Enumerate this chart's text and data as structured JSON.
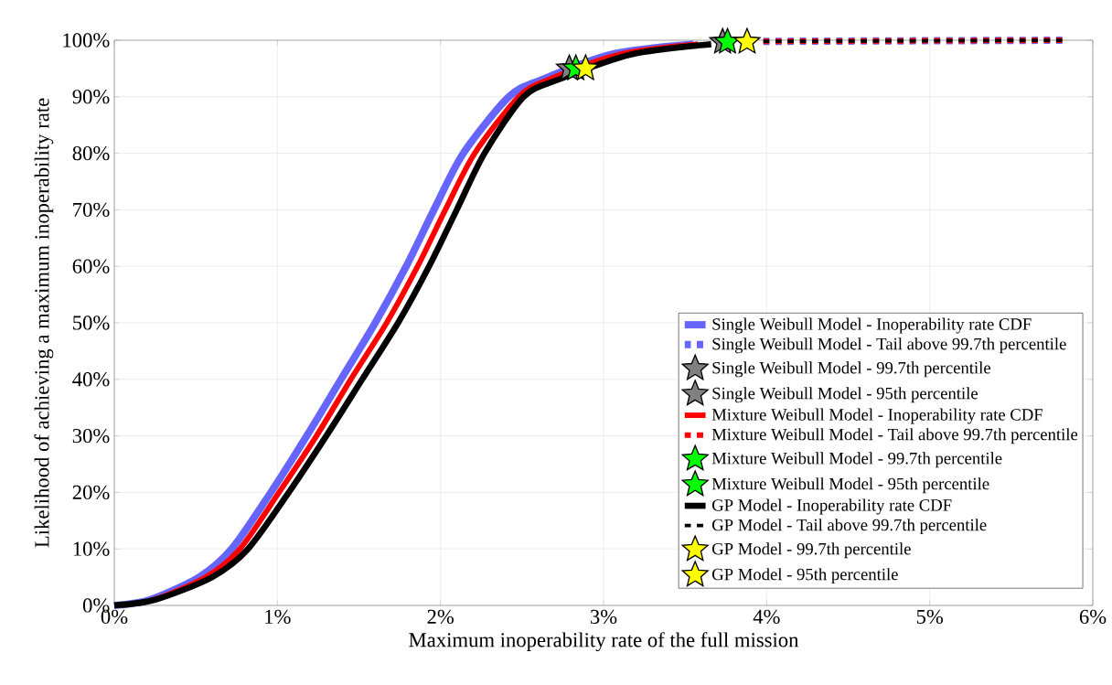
{
  "chart_data": {
    "type": "line",
    "xlabel": "Maximum inoperability rate of the full mission",
    "ylabel": "Likelihood of achieving a maximum inoperability rate",
    "xlim": [
      0,
      6
    ],
    "ylim": [
      0,
      100
    ],
    "xticks": [
      {
        "value": 0,
        "label": "0%"
      },
      {
        "value": 1,
        "label": "1%"
      },
      {
        "value": 2,
        "label": "2%"
      },
      {
        "value": 3,
        "label": "3%"
      },
      {
        "value": 4,
        "label": "4%"
      },
      {
        "value": 5,
        "label": "5%"
      },
      {
        "value": 6,
        "label": "6%"
      }
    ],
    "yticks": [
      {
        "value": 0,
        "label": "0%"
      },
      {
        "value": 10,
        "label": "10%"
      },
      {
        "value": 20,
        "label": "20%"
      },
      {
        "value": 30,
        "label": "30%"
      },
      {
        "value": 40,
        "label": "40%"
      },
      {
        "value": 50,
        "label": "50%"
      },
      {
        "value": 60,
        "label": "60%"
      },
      {
        "value": 70,
        "label": "70%"
      },
      {
        "value": 80,
        "label": "80%"
      },
      {
        "value": 90,
        "label": "90%"
      },
      {
        "value": 100,
        "label": "100%"
      }
    ],
    "grid": true,
    "legend": "bottom right",
    "series": [
      {
        "name": "Single Weibull Model - Inoperability rate CDF",
        "color": "#6666ff",
        "x": [
          0,
          0.22,
          0.52,
          0.72,
          0.96,
          1.18,
          1.39,
          1.6,
          1.79,
          1.96,
          2.14,
          2.42,
          2.62,
          3.05,
          3.55
        ],
        "values": [
          0,
          1,
          5,
          10,
          20,
          30,
          40,
          50,
          60,
          70,
          80,
          90,
          93,
          97.5,
          99.3
        ]
      },
      {
        "name": "Single Weibull Model - Tail above 99.7th percentile",
        "line_style": "dotted",
        "color": "#6666ff",
        "x": [
          3.98,
          5.83
        ],
        "values": [
          99.8,
          100
        ]
      },
      {
        "name": "Single Weibull Model - 99.7th percentile",
        "type": "scatter",
        "marker": "star",
        "color": "#808080",
        "x": [
          3.73
        ],
        "values": [
          99.7
        ]
      },
      {
        "name": "Single Weibull Model - 95th percentile",
        "type": "scatter",
        "marker": "star",
        "color": "#808080",
        "x": [
          2.79
        ],
        "values": [
          95
        ]
      },
      {
        "name": "Mixture Weibull Model - Inoperability rate CDF",
        "color": "#ff0000",
        "x": [
          0,
          0.24,
          0.56,
          0.77,
          1.01,
          1.24,
          1.45,
          1.67,
          1.86,
          2.03,
          2.21,
          2.48,
          2.66,
          3.1,
          3.58
        ],
        "values": [
          0,
          1,
          5,
          10,
          20,
          30,
          40,
          50,
          60,
          70,
          80,
          90,
          93,
          97.5,
          99.3
        ]
      },
      {
        "name": "Mixture Weibull Model - Tail above 99.7th percentile",
        "line_style": "dotted",
        "color": "#ff0000",
        "x": [
          3.98,
          5.83
        ],
        "values": [
          99.8,
          100
        ]
      },
      {
        "name": "Mixture Weibull Model - 99.7th percentile",
        "type": "scatter",
        "marker": "star",
        "color": "#00ff00",
        "x": [
          3.76
        ],
        "values": [
          99.7
        ]
      },
      {
        "name": "Mixture Weibull Model - 95th percentile",
        "type": "scatter",
        "marker": "star",
        "color": "#00ff00",
        "x": [
          2.83
        ],
        "values": [
          95
        ]
      },
      {
        "name": "GP Model - Inoperability rate CDF",
        "color": "#000000",
        "x": [
          0,
          0.25,
          0.6,
          0.82,
          1.07,
          1.3,
          1.52,
          1.74,
          1.93,
          2.1,
          2.27,
          2.51,
          2.72,
          3.17,
          3.66
        ],
        "values": [
          0,
          1,
          5,
          10,
          20,
          30,
          40,
          50,
          60,
          70,
          80,
          90,
          93,
          97.5,
          99.3
        ]
      },
      {
        "name": "GP Model - Tail above 99.7th percentile",
        "line_style": "dotted",
        "color": "#000000",
        "x": [
          3.98,
          5.83
        ],
        "values": [
          99.8,
          100
        ]
      },
      {
        "name": "GP Model - 99.7th percentile",
        "type": "scatter",
        "marker": "star",
        "color": "#ffff00",
        "x": [
          3.88
        ],
        "values": [
          99.7
        ]
      },
      {
        "name": "GP Model - 95th percentile",
        "type": "scatter",
        "marker": "star",
        "color": "#ffff00",
        "x": [
          2.89
        ],
        "values": [
          95
        ]
      }
    ]
  }
}
